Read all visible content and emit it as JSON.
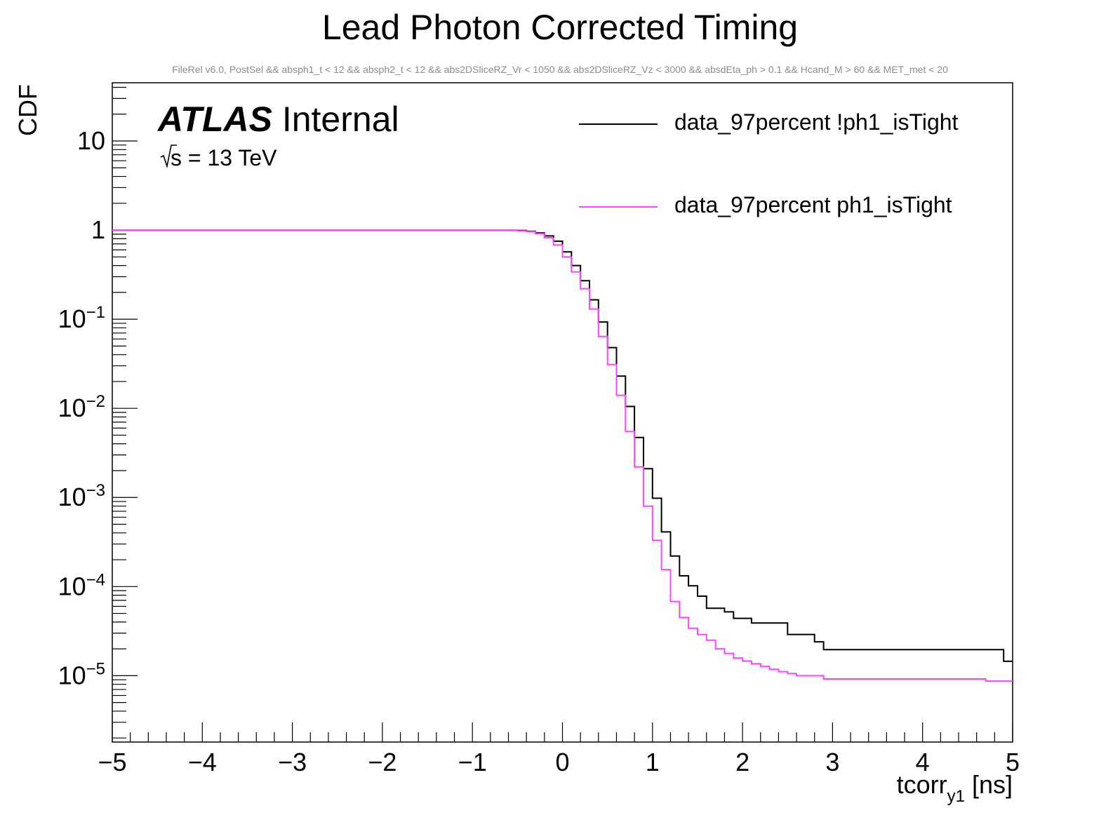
{
  "chart_data": {
    "type": "line",
    "title": "Lead Photon Corrected Timing",
    "subtitle": "FileRel v6.0, PostSel &&  absph1_t < 12 && absph2_t < 12 && abs2DSliceRZ_Vr < 1050 && abs2DSliceRZ_Vz < 3000 && absdEta_ph > 0.1 && Hcand_M > 60 && MET_met < 20",
    "ylabel": "CDF",
    "xlabel": {
      "main": "tcorr",
      "sub": "y1",
      "unit": " [ns]"
    },
    "xlim": [
      -5,
      5
    ],
    "ylim": [
      1.8e-06,
      45
    ],
    "yscale": "log",
    "x_ticks": [
      "−5",
      "−4",
      "−3",
      "−2",
      "−1",
      "0",
      "1",
      "2",
      "3",
      "4",
      "5"
    ],
    "x_tick_values": [
      -5,
      -4,
      -3,
      -2,
      -1,
      0,
      1,
      2,
      3,
      4,
      5
    ],
    "y_ticks": [
      {
        "value": 10,
        "base": "10",
        "exp": ""
      },
      {
        "value": 1,
        "base": "1",
        "exp": ""
      },
      {
        "value": 0.1,
        "base": "10",
        "exp": "−1"
      },
      {
        "value": 0.01,
        "base": "10",
        "exp": "−2"
      },
      {
        "value": 0.001,
        "base": "10",
        "exp": "−3"
      },
      {
        "value": 0.0001,
        "base": "10",
        "exp": "−4"
      },
      {
        "value": 1e-05,
        "base": "10",
        "exp": "−5"
      }
    ],
    "atlas_label": {
      "bold": "ATLAS",
      "text": " Internal",
      "energy": "s = 13 TeV"
    },
    "legend_position": "top-right",
    "series": [
      {
        "name": "data_97percent !ph1_isTight",
        "color": "#000000",
        "steps": [
          [
            -5.0,
            1.0
          ],
          [
            -0.6,
            0.995
          ],
          [
            -0.5,
            0.99
          ],
          [
            -0.4,
            0.97
          ],
          [
            -0.3,
            0.93
          ],
          [
            -0.2,
            0.86
          ],
          [
            -0.1,
            0.75
          ],
          [
            0.0,
            0.57
          ],
          [
            0.1,
            0.4
          ],
          [
            0.2,
            0.27
          ],
          [
            0.3,
            0.165
          ],
          [
            0.4,
            0.093
          ],
          [
            0.5,
            0.048
          ],
          [
            0.6,
            0.023
          ],
          [
            0.7,
            0.0105
          ],
          [
            0.8,
            0.0047
          ],
          [
            0.9,
            0.0021
          ],
          [
            1.0,
            0.00098
          ],
          [
            1.1,
            0.00041
          ],
          [
            1.2,
            0.00022
          ],
          [
            1.3,
            0.000132
          ],
          [
            1.4,
            0.000102
          ],
          [
            1.5,
            7.8e-05
          ],
          [
            1.6,
            5.7e-05
          ],
          [
            1.8,
            5.2e-05
          ],
          [
            1.9,
            4.4e-05
          ],
          [
            2.1,
            3.9e-05
          ],
          [
            2.5,
            2.9e-05
          ],
          [
            2.8,
            2.4e-05
          ],
          [
            2.9,
            1.96e-05
          ],
          [
            4.9,
            1.45e-05
          ]
        ]
      },
      {
        "name": "data_97percent ph1_isTight",
        "color": "#ff44ff",
        "steps": [
          [
            -5.0,
            1.0
          ],
          [
            -0.6,
            0.995
          ],
          [
            -0.5,
            0.98
          ],
          [
            -0.4,
            0.96
          ],
          [
            -0.3,
            0.91
          ],
          [
            -0.2,
            0.82
          ],
          [
            -0.1,
            0.68
          ],
          [
            0.0,
            0.5
          ],
          [
            0.1,
            0.34
          ],
          [
            0.2,
            0.22
          ],
          [
            0.3,
            0.13
          ],
          [
            0.4,
            0.064
          ],
          [
            0.5,
            0.031
          ],
          [
            0.6,
            0.014
          ],
          [
            0.7,
            0.0055
          ],
          [
            0.8,
            0.0022
          ],
          [
            0.9,
            0.0008
          ],
          [
            1.0,
            0.00033
          ],
          [
            1.1,
            0.000155
          ],
          [
            1.2,
            6.8e-05
          ],
          [
            1.3,
            4.5e-05
          ],
          [
            1.4,
            3.4e-05
          ],
          [
            1.5,
            2.9e-05
          ],
          [
            1.6,
            2.5e-05
          ],
          [
            1.7,
            2e-05
          ],
          [
            1.8,
            1.78e-05
          ],
          [
            1.9,
            1.58e-05
          ],
          [
            2.0,
            1.46e-05
          ],
          [
            2.1,
            1.36e-05
          ],
          [
            2.2,
            1.27e-05
          ],
          [
            2.3,
            1.18e-05
          ],
          [
            2.4,
            1.11e-05
          ],
          [
            2.5,
            1.06e-05
          ],
          [
            2.6,
            1e-05
          ],
          [
            2.9,
            9.2e-06
          ],
          [
            4.7,
            8.7e-06
          ]
        ]
      }
    ]
  }
}
